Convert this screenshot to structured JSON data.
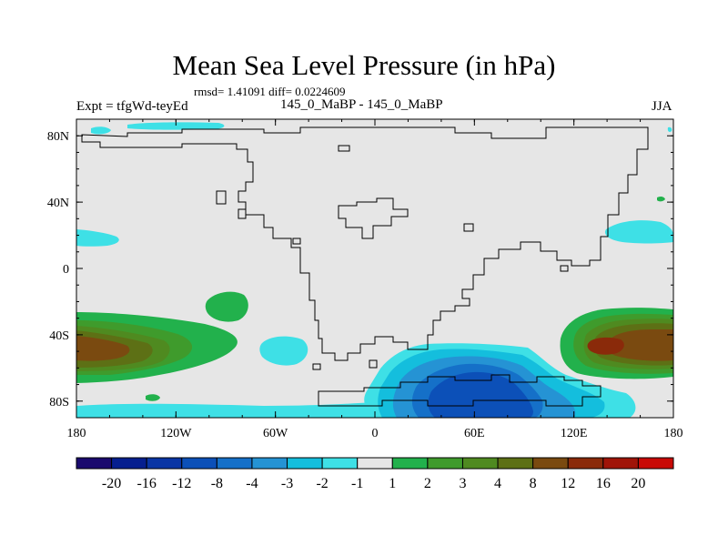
{
  "figure": {
    "title": "Mean Sea Level Pressure (in hPa)",
    "stats": "rmsd= 1.41091 diff= 0.0224609",
    "experiment": "Expt = tfgWd-teyEd",
    "comparison": "145_0_MaBP - 145_0_MaBP",
    "season": "JJA"
  },
  "chart_data": {
    "type": "contour-map",
    "variable": "Mean Sea Level Pressure difference",
    "units": "hPa",
    "projection": "cylindrical equidistant",
    "x_range": [
      -180,
      180
    ],
    "y_range": [
      -90,
      90
    ],
    "x_ticks": [
      {
        "value": -180,
        "label": "180"
      },
      {
        "value": -120,
        "label": "120W"
      },
      {
        "value": -60,
        "label": "60W"
      },
      {
        "value": 0,
        "label": "0"
      },
      {
        "value": 60,
        "label": "60E"
      },
      {
        "value": 120,
        "label": "120E"
      },
      {
        "value": 180,
        "label": "180"
      }
    ],
    "y_ticks": [
      {
        "value": 80,
        "label": "80N"
      },
      {
        "value": 40,
        "label": "40N"
      },
      {
        "value": 0,
        "label": "0"
      },
      {
        "value": -40,
        "label": "40S"
      },
      {
        "value": -80,
        "label": "80S"
      }
    ],
    "colorbar": {
      "labels": [
        "-20",
        "-16",
        "-12",
        "-8",
        "-4",
        "-3",
        "-2",
        "-1",
        "1",
        "2",
        "3",
        "4",
        "8",
        "12",
        "16",
        "20"
      ],
      "colors": [
        "#1a0a6e",
        "#061f8f",
        "#0a35a5",
        "#0c50b8",
        "#1570c8",
        "#2593d4",
        "#14bedd",
        "#3ee0e6",
        "#e6e6e6",
        "#22b14c",
        "#3f9b2c",
        "#4f8a20",
        "#5d7015",
        "#7a4a10",
        "#8a2a0a",
        "#a01408",
        "#c80a06"
      ],
      "background_color": "#e6e6e6"
    },
    "regions": [
      {
        "name": "south-pacific-high",
        "center": [
          -170,
          -45
        ],
        "max_level": "8 to 12",
        "levels": [
          "1",
          "2",
          "3",
          "4",
          "8"
        ]
      },
      {
        "name": "south-indian-ocean-high",
        "center": [
          150,
          -45
        ],
        "max_level": "12 to 16",
        "levels": [
          "1",
          "2",
          "3",
          "4",
          "8",
          "12"
        ]
      },
      {
        "name": "antarctic-low",
        "center": [
          60,
          -75
        ],
        "min_level": "-8 to -12",
        "levels": [
          "-1",
          "-2",
          "-3",
          "-4",
          "-8"
        ]
      },
      {
        "name": "south-atlantic-negative",
        "center": [
          -60,
          -48
        ],
        "min_level": "-1 to -2",
        "levels": [
          "-1"
        ]
      },
      {
        "name": "south-central-pacific-positive",
        "center": [
          -90,
          -25
        ],
        "max_level": "1 to 2",
        "levels": [
          "1"
        ]
      },
      {
        "name": "north-pacific-east-negative",
        "center": [
          160,
          28
        ],
        "min_level": "-1 to -2",
        "levels": [
          "-1"
        ]
      },
      {
        "name": "north-pacific-west-negative",
        "center": [
          -170,
          22
        ],
        "min_level": "-1 to -2",
        "levels": [
          "-1"
        ]
      },
      {
        "name": "arctic-negative",
        "center": [
          -110,
          87
        ],
        "min_level": "-1 to -2",
        "levels": [
          "-1"
        ]
      },
      {
        "name": "far-southern-negative-band",
        "center": [
          -100,
          -85
        ],
        "min_level": "-1 to -2",
        "levels": [
          "-1"
        ]
      }
    ]
  },
  "colors": {
    "frame": "#000000",
    "background": "#e6e6e6",
    "coastline": "#000000"
  }
}
